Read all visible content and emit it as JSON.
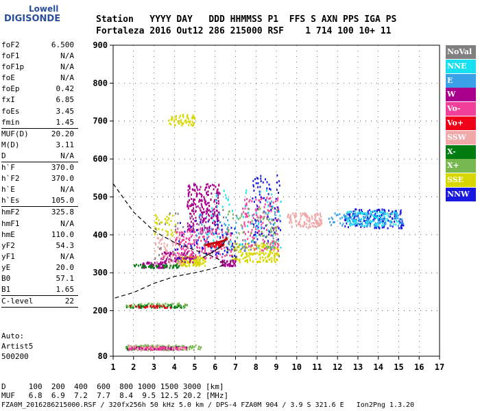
{
  "logo": {
    "line1": "Lowell",
    "line2": "DIGISONDE"
  },
  "header": {
    "line1": "Station   YYYY DAY   DDD HHMMSS P1  FFS S AXN PPS IGA PS",
    "line2": "Fortaleza 2016 Out12 286 215000 RSF    1 714 100 10+ 11"
  },
  "params": [
    {
      "name": "foF2",
      "value": "6.500"
    },
    {
      "name": "foF1",
      "value": "N/A"
    },
    {
      "name": "foF1p",
      "value": "N/A"
    },
    {
      "name": "foE",
      "value": "N/A"
    },
    {
      "name": "foEp",
      "value": "0.42"
    },
    {
      "name": "fxI",
      "value": "6.85"
    },
    {
      "name": "foEs",
      "value": "3.45"
    },
    {
      "name": "fmin",
      "value": "1.45"
    },
    {
      "sep": true
    },
    {
      "name": "MUF(D)",
      "value": "20.20"
    },
    {
      "name": "M(D)",
      "value": "3.11"
    },
    {
      "name": "D",
      "value": "N/A"
    },
    {
      "sep": true
    },
    {
      "name": "h`F",
      "value": "370.0"
    },
    {
      "name": "h`F2",
      "value": "370.0"
    },
    {
      "name": "h`E",
      "value": "N/A"
    },
    {
      "name": "h`Es",
      "value": "105.0"
    },
    {
      "sep": true
    },
    {
      "name": "hmF2",
      "value": "325.8"
    },
    {
      "name": "hmF1",
      "value": "N/A"
    },
    {
      "name": "hmE",
      "value": "110.0"
    },
    {
      "name": "yF2",
      "value": "54.3"
    },
    {
      "name": "yF1",
      "value": "N/A"
    },
    {
      "name": "yE",
      "value": "20.0"
    },
    {
      "name": "B0",
      "value": "57.1"
    },
    {
      "name": "B1",
      "value": "1.65"
    },
    {
      "sep": true
    },
    {
      "name": "C-level",
      "value": "22"
    },
    {
      "sep": true
    }
  ],
  "auto": {
    "line1": "Auto:",
    "line2": "Artist5",
    "line3": "500200"
  },
  "legend": [
    {
      "label": "NoVal",
      "color": "#808080"
    },
    {
      "label": "NNE",
      "color": "#18e0f0"
    },
    {
      "label": "E",
      "color": "#3aa0e8"
    },
    {
      "label": "W",
      "color": "#a8008c"
    },
    {
      "label": "Vo-",
      "color": "#f0409a"
    },
    {
      "label": "Vo+",
      "color": "#f00018"
    },
    {
      "label": "SSW",
      "color": "#f0a8a8"
    },
    {
      "label": "X-",
      "color": "#007c10"
    },
    {
      "label": "X+",
      "color": "#78b850"
    },
    {
      "label": "SSE",
      "color": "#d8d800"
    },
    {
      "label": "NNW",
      "color": "#1818e0"
    }
  ],
  "bottom": {
    "d_row": "D     100  200  400  600  800 1000 1500 3000 [km]",
    "muf_row": "MUF   6.8  6.9  7.2  7.7  8.4  9.5 12.5 20.2 [MHz]",
    "footer": "FZA0M_2016286215000.RSF / 320fx256h 50 kHz 5.0 km / DPS-4 FZA0M 904 / 3.9 S 321.6 E   Ion2Png 1.3.20"
  },
  "chart_data": {
    "type": "scatter",
    "xlim": [
      1,
      17
    ],
    "ylim": [
      80,
      900
    ],
    "xticks": [
      "1",
      "2",
      "3",
      "4",
      "5",
      "6",
      "7",
      "8",
      "9",
      "10",
      "11",
      "12",
      "13",
      "14",
      "15",
      "16",
      "17"
    ],
    "yticks": [
      "80",
      "200",
      "300",
      "400",
      "500",
      "600",
      "700",
      "800",
      "900"
    ],
    "ytick_values": [
      80,
      200,
      300,
      400,
      500,
      600,
      700,
      800,
      900
    ],
    "grid": true,
    "legend_position": "right",
    "clusters": [
      {
        "color": "#d8d800",
        "x": [
          4.1,
          5.5
        ],
        "y": [
          320,
          345
        ],
        "n": 140
      },
      {
        "color": "#d8d800",
        "x": [
          6.8,
          9.1
        ],
        "y": [
          330,
          380
        ],
        "n": 160
      },
      {
        "color": "#d8d800",
        "x": [
          3.7,
          5.0
        ],
        "y": [
          690,
          720
        ],
        "n": 60
      },
      {
        "color": "#d8d800",
        "x": [
          3.0,
          4.2
        ],
        "y": [
          400,
          460
        ],
        "n": 40
      },
      {
        "color": "#a8008c",
        "x": [
          4.6,
          6.2
        ],
        "y": [
          410,
          540
        ],
        "n": 240
      },
      {
        "color": "#a8008c",
        "x": [
          2.3,
          3.6
        ],
        "y": [
          315,
          330
        ],
        "n": 60
      },
      {
        "color": "#a8008c",
        "x": [
          3.3,
          4.9
        ],
        "y": [
          330,
          360
        ],
        "n": 80
      },
      {
        "color": "#a8008c",
        "x": [
          6.2,
          7.0
        ],
        "y": [
          320,
          335
        ],
        "n": 40
      },
      {
        "color": "#f0409a",
        "x": [
          4.0,
          6.8
        ],
        "y": [
          340,
          420
        ],
        "n": 200
      },
      {
        "color": "#f0409a",
        "x": [
          7.3,
          9.1
        ],
        "y": [
          360,
          500
        ],
        "n": 150
      },
      {
        "color": "#f0a8a8",
        "x": [
          9.5,
          11.2
        ],
        "y": [
          420,
          460
        ],
        "n": 120
      },
      {
        "color": "#f0a8a8",
        "x": [
          3.0,
          4.3
        ],
        "y": [
          320,
          400
        ],
        "n": 60
      },
      {
        "color": "#1818e0",
        "x": [
          12.3,
          15.2
        ],
        "y": [
          420,
          470
        ],
        "n": 150
      },
      {
        "color": "#1818e0",
        "x": [
          7.8,
          9.2
        ],
        "y": [
          380,
          560
        ],
        "n": 80
      },
      {
        "color": "#18e0f0",
        "x": [
          12.3,
          15.0
        ],
        "y": [
          425,
          465
        ],
        "n": 130
      },
      {
        "color": "#18e0f0",
        "x": [
          5.6,
          9.2
        ],
        "y": [
          360,
          520
        ],
        "n": 70
      },
      {
        "color": "#3aa0e8",
        "x": [
          11.5,
          15.2
        ],
        "y": [
          425,
          460
        ],
        "n": 80
      },
      {
        "color": "#3aa0e8",
        "x": [
          5.0,
          9.0
        ],
        "y": [
          360,
          470
        ],
        "n": 60
      },
      {
        "color": "#007c10",
        "x": [
          1.6,
          4.6
        ],
        "y": [
          100,
          108
        ],
        "n": 120
      },
      {
        "color": "#007c10",
        "x": [
          1.6,
          4.6
        ],
        "y": [
          210,
          218
        ],
        "n": 60
      },
      {
        "color": "#007c10",
        "x": [
          2.0,
          4.2
        ],
        "y": [
          315,
          325
        ],
        "n": 50
      },
      {
        "color": "#78b850",
        "x": [
          1.6,
          5.4
        ],
        "y": [
          98,
          112
        ],
        "n": 100
      },
      {
        "color": "#78b850",
        "x": [
          1.6,
          4.6
        ],
        "y": [
          212,
          222
        ],
        "n": 40
      },
      {
        "color": "#78b850",
        "x": [
          6.5,
          9.1
        ],
        "y": [
          360,
          480
        ],
        "n": 60
      },
      {
        "color": "#a8008c",
        "x": [
          1.7,
          4.6
        ],
        "y": [
          100,
          106
        ],
        "n": 80
      },
      {
        "color": "#f0409a",
        "x": [
          1.7,
          4.6
        ],
        "y": [
          99,
          107
        ],
        "n": 70
      },
      {
        "color": "#f0a8a8",
        "x": [
          1.7,
          4.6
        ],
        "y": [
          100,
          110
        ],
        "n": 40
      },
      {
        "color": "#f00018",
        "x": [
          5.6,
          6.4
        ],
        "y": [
          370,
          380
        ],
        "n": 40
      },
      {
        "color": "#f00018",
        "x": [
          1.8,
          4.0
        ],
        "y": [
          210,
          216
        ],
        "n": 25
      },
      {
        "color": "#808080",
        "x": [
          3.0,
          9.2
        ],
        "y": [
          330,
          470
        ],
        "n": 60
      },
      {
        "color": "#1818e0",
        "x": [
          4.0,
          7.0
        ],
        "y": [
          340,
          440
        ],
        "n": 60
      }
    ],
    "profile_dashed": [
      [
        1.0,
        535
      ],
      [
        2.0,
        460
      ],
      [
        3.0,
        410
      ],
      [
        4.0,
        380
      ],
      [
        5.0,
        360
      ],
      [
        5.8,
        345
      ],
      [
        6.3,
        332
      ],
      [
        6.5,
        325.8
      ],
      [
        6.3,
        318
      ],
      [
        5.8,
        310
      ],
      [
        5.0,
        300
      ],
      [
        4.0,
        290
      ],
      [
        3.0,
        272
      ],
      [
        2.0,
        248
      ],
      [
        1.0,
        232
      ]
    ],
    "trace_solid": [
      [
        5.4,
        340
      ],
      [
        5.8,
        352
      ],
      [
        6.1,
        362
      ],
      [
        6.35,
        372
      ],
      [
        6.5,
        385
      ],
      [
        6.55,
        395
      ]
    ],
    "trace_red": [
      [
        5.5,
        372
      ],
      [
        5.8,
        377
      ],
      [
        6.1,
        380
      ],
      [
        6.4,
        384
      ],
      [
        6.6,
        390
      ]
    ]
  }
}
